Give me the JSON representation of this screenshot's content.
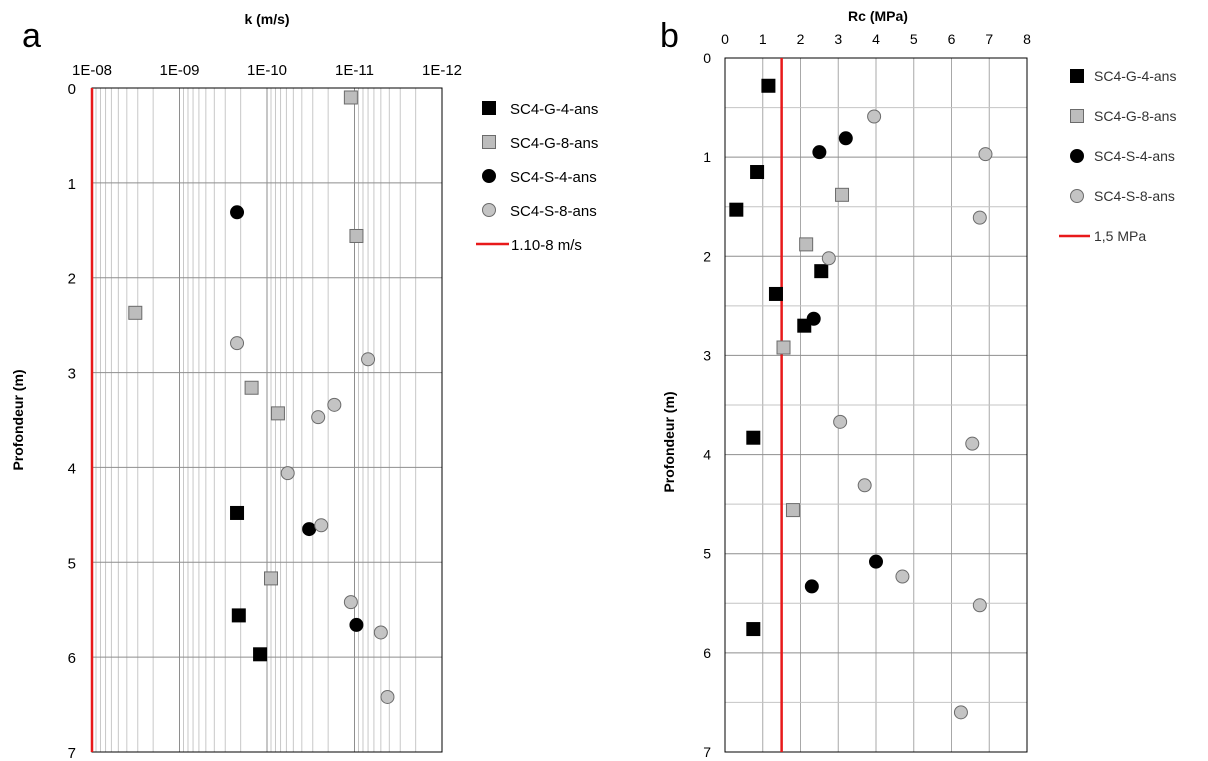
{
  "chart_data": [
    {
      "panel": "a",
      "type": "scatter",
      "xlabel": "k (m/s)",
      "ylabel": "Profondeur (m)",
      "x_scale": "log-reversed",
      "x_tick_labels": [
        "1E-08",
        "1E-09",
        "1E-10",
        "1E-11",
        "1E-12"
      ],
      "xlim": [
        1e-08,
        1e-12
      ],
      "y_tick_labels": [
        "0",
        "1",
        "2",
        "3",
        "4",
        "5",
        "6",
        "7"
      ],
      "ylim": [
        0,
        7
      ],
      "y_inverted": true,
      "grid": true,
      "legend_position": "right",
      "series": [
        {
          "name": "SC4-G-4-ans",
          "marker": "square",
          "color": "#000000",
          "points": [
            [
              2.2e-10,
              4.48
            ],
            [
              2.1e-10,
              5.56
            ],
            [
              1.2e-10,
              5.97
            ]
          ]
        },
        {
          "name": "SC4-G-8-ans",
          "marker": "square",
          "color": "#bdbdbd",
          "points": [
            [
              1.1e-11,
              0.1
            ],
            [
              9.5e-12,
              1.56
            ],
            [
              3.2e-09,
              2.37
            ],
            [
              1.5e-10,
              3.16
            ],
            [
              7.5e-11,
              3.43
            ],
            [
              9e-11,
              5.17
            ]
          ]
        },
        {
          "name": "SC4-S-4-ans",
          "marker": "circle",
          "color": "#000000",
          "points": [
            [
              2.2e-10,
              1.31
            ],
            [
              3.3e-11,
              4.65
            ],
            [
              9.5e-12,
              5.66
            ]
          ]
        },
        {
          "name": "SC4-S-8-ans",
          "marker": "circle",
          "color": "#c4c4c4",
          "points": [
            [
              2.2e-10,
              2.69
            ],
            [
              7e-12,
              2.86
            ],
            [
              1.7e-11,
              3.34
            ],
            [
              2.6e-11,
              3.47
            ],
            [
              5.8e-11,
              4.06
            ],
            [
              2.4e-11,
              4.61
            ],
            [
              1.1e-11,
              5.42
            ],
            [
              5e-12,
              5.74
            ],
            [
              4.2e-12,
              6.42
            ]
          ]
        }
      ],
      "reference_line": {
        "name": "1.10-8 m/s",
        "x": 1e-08,
        "color": "#e8191a"
      }
    },
    {
      "panel": "b",
      "type": "scatter",
      "xlabel": "Rc (MPa)",
      "ylabel": "Profondeur (m)",
      "x_tick_labels": [
        "0",
        "1",
        "2",
        "3",
        "4",
        "5",
        "6",
        "7",
        "8"
      ],
      "xlim": [
        0,
        8
      ],
      "y_tick_labels": [
        "0",
        "1",
        "2",
        "3",
        "4",
        "5",
        "6",
        "7"
      ],
      "ylim": [
        0,
        7
      ],
      "y_inverted": true,
      "grid": true,
      "legend_position": "right",
      "series": [
        {
          "name": "SC4-G-4-ans",
          "marker": "square",
          "color": "#000000",
          "points": [
            [
              1.15,
              0.28
            ],
            [
              0.85,
              1.15
            ],
            [
              0.3,
              1.53
            ],
            [
              2.55,
              2.15
            ],
            [
              1.35,
              2.38
            ],
            [
              2.1,
              2.7
            ],
            [
              0.75,
              3.83
            ],
            [
              0.75,
              5.76
            ]
          ]
        },
        {
          "name": "SC4-G-8-ans",
          "marker": "square",
          "color": "#bdbdbd",
          "points": [
            [
              3.1,
              1.38
            ],
            [
              2.15,
              1.88
            ],
            [
              1.55,
              2.92
            ],
            [
              1.8,
              4.56
            ]
          ]
        },
        {
          "name": "SC4-S-4-ans",
          "marker": "circle",
          "color": "#000000",
          "points": [
            [
              3.2,
              0.81
            ],
            [
              2.5,
              0.95
            ],
            [
              2.35,
              2.63
            ],
            [
              4.0,
              5.08
            ],
            [
              2.3,
              5.33
            ]
          ]
        },
        {
          "name": "SC4-S-8-ans",
          "marker": "circle",
          "color": "#c4c4c4",
          "points": [
            [
              3.95,
              0.59
            ],
            [
              6.9,
              0.97
            ],
            [
              6.75,
              1.61
            ],
            [
              2.75,
              2.02
            ],
            [
              3.05,
              3.67
            ],
            [
              6.55,
              3.89
            ],
            [
              3.7,
              4.31
            ],
            [
              4.7,
              5.23
            ],
            [
              6.75,
              5.52
            ],
            [
              6.25,
              6.6
            ]
          ]
        }
      ],
      "reference_line": {
        "name": "1,5 MPa",
        "x": 1.5,
        "color": "#e8191a"
      }
    }
  ]
}
